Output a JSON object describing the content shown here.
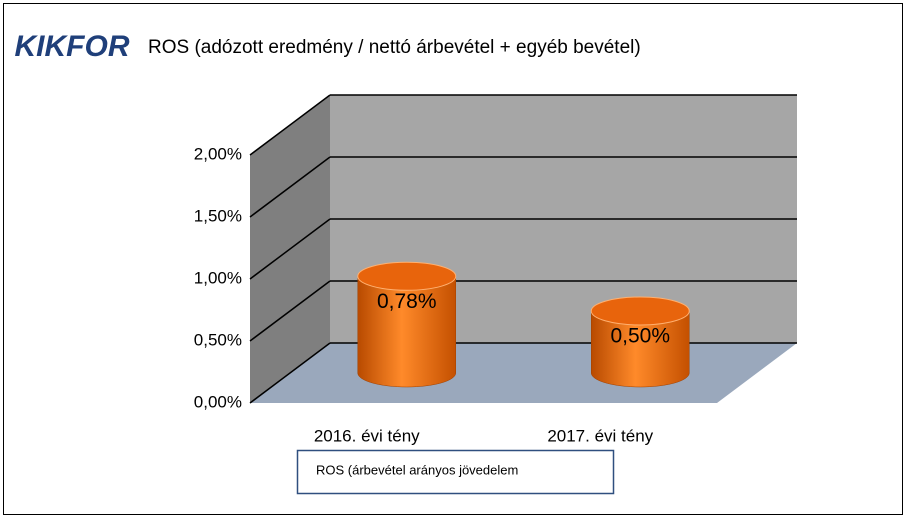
{
  "chart_data": {
    "type": "bar3d",
    "logo": "KIKFOR",
    "title": "ROS (adózott eredmény / nettó árbevétel + egyéb bevétel)",
    "categories": [
      "2016. évi tény",
      "2017. évi tény"
    ],
    "series": [
      {
        "name": "ROS (árbevétel arányos jövedelem",
        "color": "#f07010",
        "values": [
          0.78,
          0.5
        ],
        "value_labels": [
          "0,78%",
          "0,50%"
        ]
      }
    ],
    "ylim": [
      0,
      2
    ],
    "yticks": [
      {
        "value": 0,
        "label": "0,00%"
      },
      {
        "value": 0.5,
        "label": "0,50%"
      },
      {
        "value": 1,
        "label": "1,00%"
      },
      {
        "value": 1.5,
        "label": "1,50%"
      },
      {
        "value": 2,
        "label": "2,00%"
      }
    ],
    "grid": true
  }
}
